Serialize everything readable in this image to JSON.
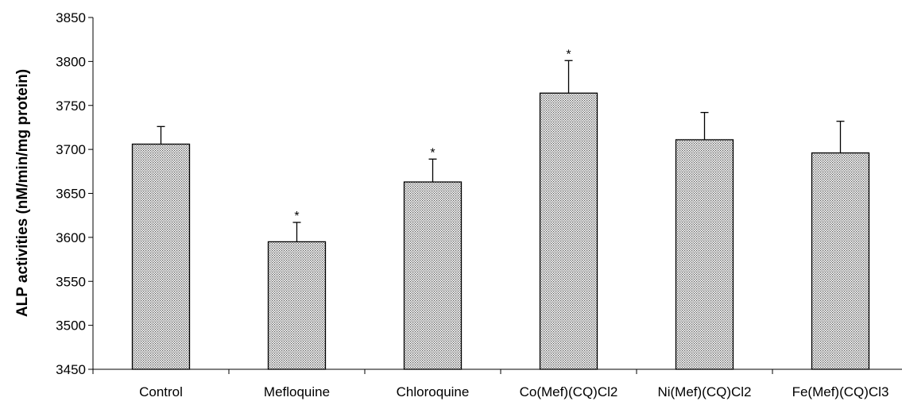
{
  "chart_data": {
    "type": "bar",
    "title": "",
    "xlabel": "",
    "ylabel": "ALP activities (nM/min/mg protein)",
    "ylim": [
      3450,
      3850
    ],
    "yticks": [
      3450,
      3500,
      3550,
      3600,
      3650,
      3700,
      3750,
      3800,
      3850
    ],
    "grid": false,
    "legend": "none",
    "bar_fill": "dotted-gray",
    "categories": [
      "Control",
      "Mefloquine",
      "Chloroquine",
      "Co(Mef)(CQ)Cl2",
      "Ni(Mef)(CQ)Cl2",
      "Fe(Mef)(CQ)Cl3"
    ],
    "values": [
      3706,
      3595,
      3663,
      3764,
      3711,
      3696
    ],
    "error_upper": [
      20,
      22,
      26,
      37,
      31,
      36
    ],
    "significance": [
      "",
      "*",
      "*",
      "*",
      "",
      ""
    ],
    "colors": {
      "bar_dot": "#5a5a5a",
      "bar_bg": "#ffffff",
      "axis": "#000000"
    }
  }
}
